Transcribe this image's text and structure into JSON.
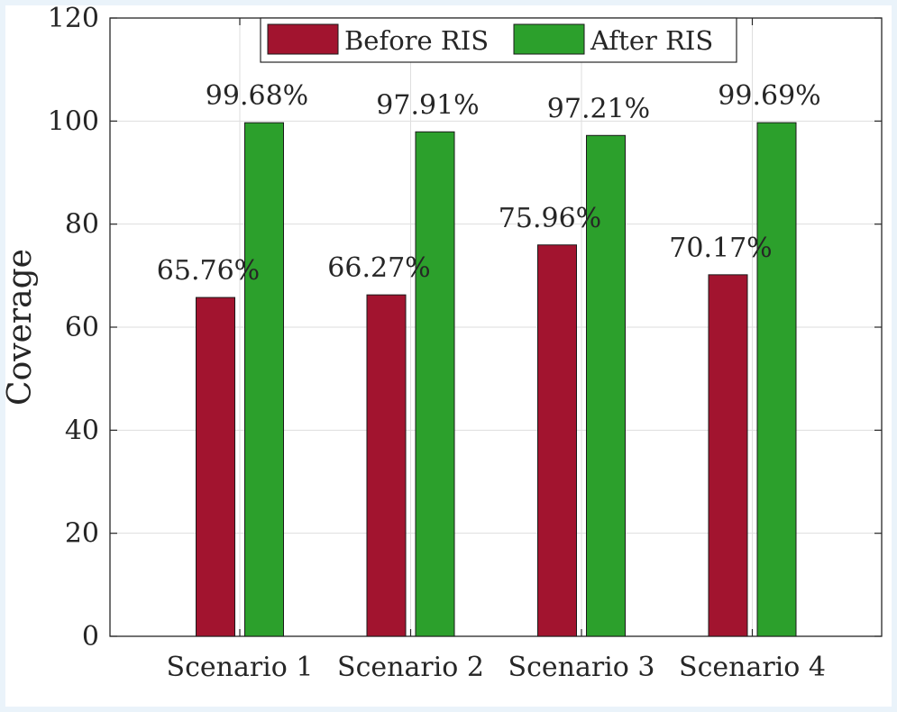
{
  "chart_data": {
    "type": "bar",
    "title": "",
    "xlabel": "",
    "ylabel": "Coverage",
    "ylim": [
      0,
      120
    ],
    "yticks": [
      0,
      20,
      40,
      60,
      80,
      100,
      120
    ],
    "grid": true,
    "legend_position": "top-center",
    "categories": [
      "Scenario 1",
      "Scenario 2",
      "Scenario 3",
      "Scenario 4"
    ],
    "series": [
      {
        "name": "Before RIS",
        "color": "#a2142f",
        "values": [
          65.76,
          66.27,
          75.96,
          70.17
        ],
        "labels": [
          "65.76%",
          "66.27%",
          "75.96%",
          "70.17%"
        ]
      },
      {
        "name": "After RIS",
        "color": "#2ca02c",
        "values": [
          99.68,
          97.91,
          97.21,
          99.69
        ],
        "labels": [
          "99.68%",
          "97.91%",
          "97.21%",
          "99.69%"
        ]
      }
    ]
  }
}
